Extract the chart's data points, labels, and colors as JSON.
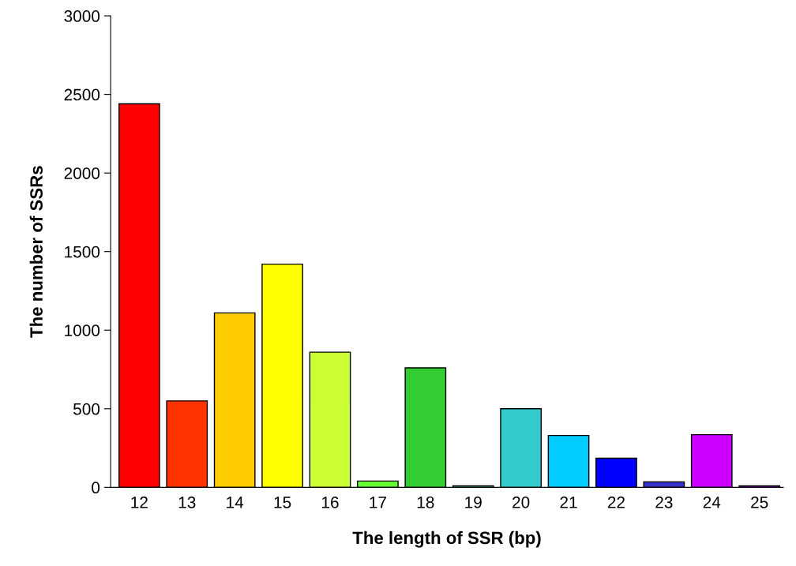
{
  "chart_data": {
    "type": "bar",
    "xlabel": "The length of SSR (bp)",
    "ylabel": "The number of SSRs",
    "categories": [
      "12",
      "13",
      "14",
      "15",
      "16",
      "17",
      "18",
      "19",
      "20",
      "21",
      "22",
      "23",
      "24",
      "25"
    ],
    "values": [
      2440,
      550,
      1110,
      1420,
      860,
      40,
      760,
      10,
      500,
      330,
      185,
      35,
      335,
      10
    ],
    "colors": [
      "#ff0000",
      "#ff3300",
      "#ffcc00",
      "#ffff00",
      "#ccff33",
      "#66ff33",
      "#33cc33",
      "#339966",
      "#33cccc",
      "#00ccff",
      "#0000ff",
      "#3333cc",
      "#cc00ff",
      "#660099"
    ],
    "ylim": [
      0,
      3000
    ],
    "yticks": [
      0,
      500,
      1000,
      1500,
      2000,
      2500,
      3000
    ],
    "grid": false,
    "legend": false
  }
}
